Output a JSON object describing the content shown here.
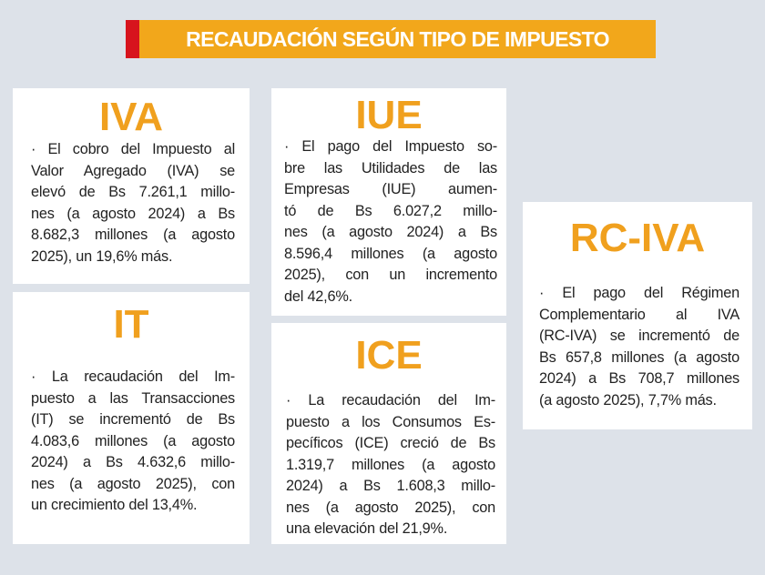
{
  "header": {
    "title": "RECAUDACIÓN SEGÚN TIPO DE IMPUESTO"
  },
  "cards": [
    {
      "title": "IVA",
      "lines": [
        "· El cobro del Impuesto al",
        "Valor Agregado (IVA) se",
        "elevó de Bs 7.261,1 millo-",
        "nes (a agosto 2024) a Bs",
        "8.682,3 millones (a agosto",
        "2025), un 19,6% más."
      ]
    },
    {
      "title": "IT",
      "lines": [
        "· La recaudación del Im-",
        "puesto a las Transacciones",
        "(IT) se incrementó de Bs",
        "4.083,6 millones (a agosto",
        "2024) a Bs 4.632,6 millo-",
        "nes (a agosto 2025), con",
        "un crecimiento del 13,4%."
      ]
    },
    {
      "title": "IUE",
      "lines": [
        "· El pago del Impuesto so-",
        "bre las Utilidades de las",
        "Empresas (IUE) aumen-",
        "tó de Bs 6.027,2 millo-",
        "nes (a agosto 2024) a Bs",
        "8.596,4 millones (a agosto",
        "2025), con un incremento",
        "del 42,6%."
      ]
    },
    {
      "title": "ICE",
      "lines": [
        "· La recaudación del Im-",
        "puesto a los Consumos Es-",
        "pecíficos (ICE) creció de Bs",
        "1.319,7 millones (a agosto",
        "2024) a Bs 1.608,3 millo-",
        "nes (a agosto 2025), con",
        "una elevación del 21,9%."
      ]
    },
    {
      "title": "RC-IVA",
      "lines": [
        "· El pago del Régimen",
        "Complementario al IVA",
        "(RC-IVA) se incrementó de",
        "Bs 657,8 millones (a agosto",
        "2024) a Bs 708,7 millones",
        "(a agosto 2025), 7,7% más."
      ]
    }
  ]
}
